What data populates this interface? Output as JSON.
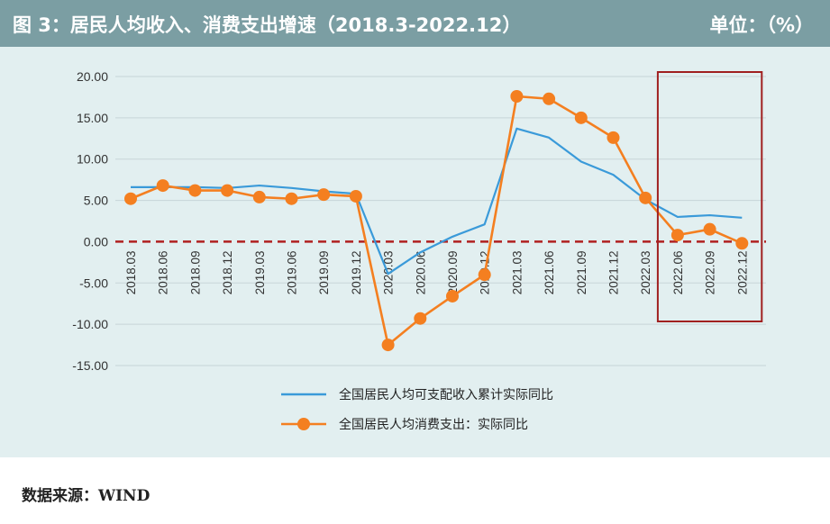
{
  "header": {
    "title": "图 3：居民人均收入、消费支出增速（2018.3-2022.12）",
    "unit": "单位：（%）"
  },
  "source": "数据来源：WIND",
  "colors": {
    "header_bg": "#7b9ea3",
    "plot_bg": "#e2eff0",
    "income_line": "#3a9ad9",
    "consumption_line": "#f47f20",
    "zero_line": "#b02020",
    "highlight_box": "#a02020"
  },
  "chart_data": {
    "type": "line",
    "title": "",
    "xlabel": "",
    "ylabel": "",
    "ylim": [
      -15,
      20
    ],
    "yticks": [
      "20.00",
      "15.00",
      "10.00",
      "5.00",
      "0.00",
      "-5.00",
      "-10.00",
      "-15.00"
    ],
    "x": [
      "2018.03",
      "2018.06",
      "2018.09",
      "2018.12",
      "2019.03",
      "2019.06",
      "2019.09",
      "2019.12",
      "2020.03",
      "2020.06",
      "2020.09",
      "2020.12",
      "2021.03",
      "2021.06",
      "2021.09",
      "2021.12",
      "2022.03",
      "2022.06",
      "2022.09",
      "2022.12"
    ],
    "series": [
      {
        "name": "全国居民人均可支配收入累计实际同比",
        "marker": "none",
        "values": [
          6.6,
          6.6,
          6.6,
          6.5,
          6.8,
          6.5,
          6.1,
          5.8,
          -3.9,
          -1.3,
          0.6,
          2.1,
          13.7,
          12.6,
          9.7,
          8.1,
          5.1,
          3.0,
          3.2,
          2.9
        ]
      },
      {
        "name": "全国居民人均消费支出：实际同比",
        "marker": "circle",
        "values": [
          5.2,
          6.8,
          6.2,
          6.2,
          5.4,
          5.2,
          5.7,
          5.5,
          -12.5,
          -9.3,
          -6.6,
          -4.0,
          17.6,
          17.3,
          15.0,
          12.6,
          5.3,
          0.8,
          1.5,
          -0.2
        ]
      }
    ],
    "reference_line": {
      "y": 0,
      "style": "dashed"
    },
    "highlight": {
      "from": "2022.06",
      "to": "2022.12",
      "style": "box"
    },
    "grid": "horizontal",
    "legend_position": "bottom"
  }
}
